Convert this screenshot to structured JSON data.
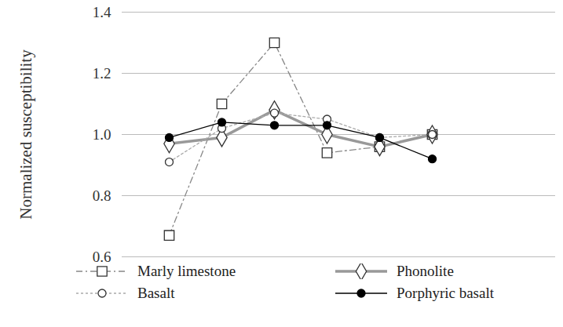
{
  "chart_data": {
    "type": "line",
    "y_label": "Normalized susceptibility",
    "categories": [
      null,
      null,
      null,
      null,
      null,
      null
    ],
    "ylim": [
      0.6,
      1.4
    ],
    "yticks": [
      0.6,
      0.8,
      {
        "value": 1,
        "label": "1.0"
      },
      1.2,
      1.4
    ],
    "grid": true,
    "legend": "bottom",
    "tick_labels": "y",
    "series": [
      {
        "name": "Marly limestone",
        "color": "#888888",
        "marker": "square",
        "line_style": "dashed",
        "values": [
          0.67,
          1.1,
          1.3,
          0.94,
          0.96,
          1.0
        ]
      },
      {
        "name": "Phonolite",
        "color": "#999999",
        "marker": "diamond",
        "line_style": "thick",
        "values": [
          0.97,
          0.99,
          1.08,
          1.0,
          0.96,
          1.0
        ]
      },
      {
        "name": "Basalt",
        "color": "#aaaaaa",
        "marker": "circle",
        "line_style": "dotted",
        "values": [
          0.91,
          1.02,
          1.07,
          1.05,
          0.99,
          1.0
        ]
      },
      {
        "name": "Porphyric basalt",
        "color": "#000000",
        "marker": "dot",
        "line_style": "solid",
        "values": [
          0.99,
          1.04,
          1.03,
          1.03,
          0.99,
          0.92
        ]
      }
    ]
  }
}
